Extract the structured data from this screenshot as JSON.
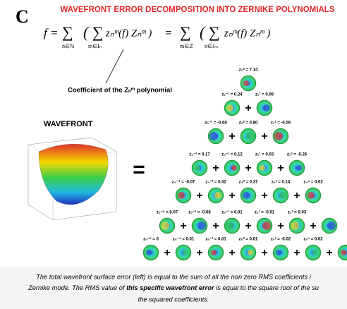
{
  "figure": {
    "panel_label": "C",
    "title": "WAVEFRONT ERROR DECOMPOSITION INTO ZERNIKE POLYNOMIALS",
    "equation": {
      "terms": [
        "f =",
        "∑",
        "( ∑",
        "zₙᵐ(f) Zₙᵐ )",
        "=",
        "∑",
        "( ∑",
        "zₙᵐ(f) Zₙᵐ )"
      ],
      "subscripts": [
        "n∈ℕ",
        "m∈Iₙ",
        "m∈ℤ",
        "n∈Jₘ"
      ]
    },
    "annotation": "Coefficient of the Zₙᵐ polynomial",
    "wavefront_label": "WAVEFRONT",
    "equals": "=",
    "plus": "+",
    "pyramid": [
      [
        "z₀⁰ = 7.14"
      ],
      [
        "z₁⁻¹ = 0.24",
        "z₁¹ = 0.09"
      ],
      [
        "z₂⁻² = -0.68",
        "z₂⁰ = 4.80",
        "z₂² = -0.06"
      ],
      [
        "z₃⁻³ = 0.17",
        "z₃⁻¹ = 0.12",
        "z₃¹ = 0.03",
        "z₃³ = -0.26"
      ],
      [
        "z₄⁻⁴ = -0.07",
        "z₄⁻² = 0.02",
        "z₄⁰ = 0.37",
        "z₄² = 0.14",
        "z₄⁴ = 0.02"
      ],
      [
        "z₅⁻⁵ = 0.07",
        "z₅⁻³ = -0.08",
        "z₅⁻¹ = 0.01",
        "z₅¹ = -0.01",
        "z₅³ = 0.03"
      ],
      [
        "z₆⁻⁶ = 0",
        "z₆⁻⁴ = 0.01",
        "z₆⁻² = 0.01",
        "z₆⁰ = 0.01",
        "z₆² = -0.02",
        "z₆⁴ = 0.02"
      ]
    ],
    "caption": {
      "line1": "The total wavefront surface error (left) is equal to the sum of all the non zero RMS coefficients i",
      "line2_start": "Zernike mode. The RMS value of ",
      "line2_bold": "this specific wavefront error",
      "line2_end": " is equal to the square root of the su",
      "line3": "the squared coefficients."
    }
  }
}
